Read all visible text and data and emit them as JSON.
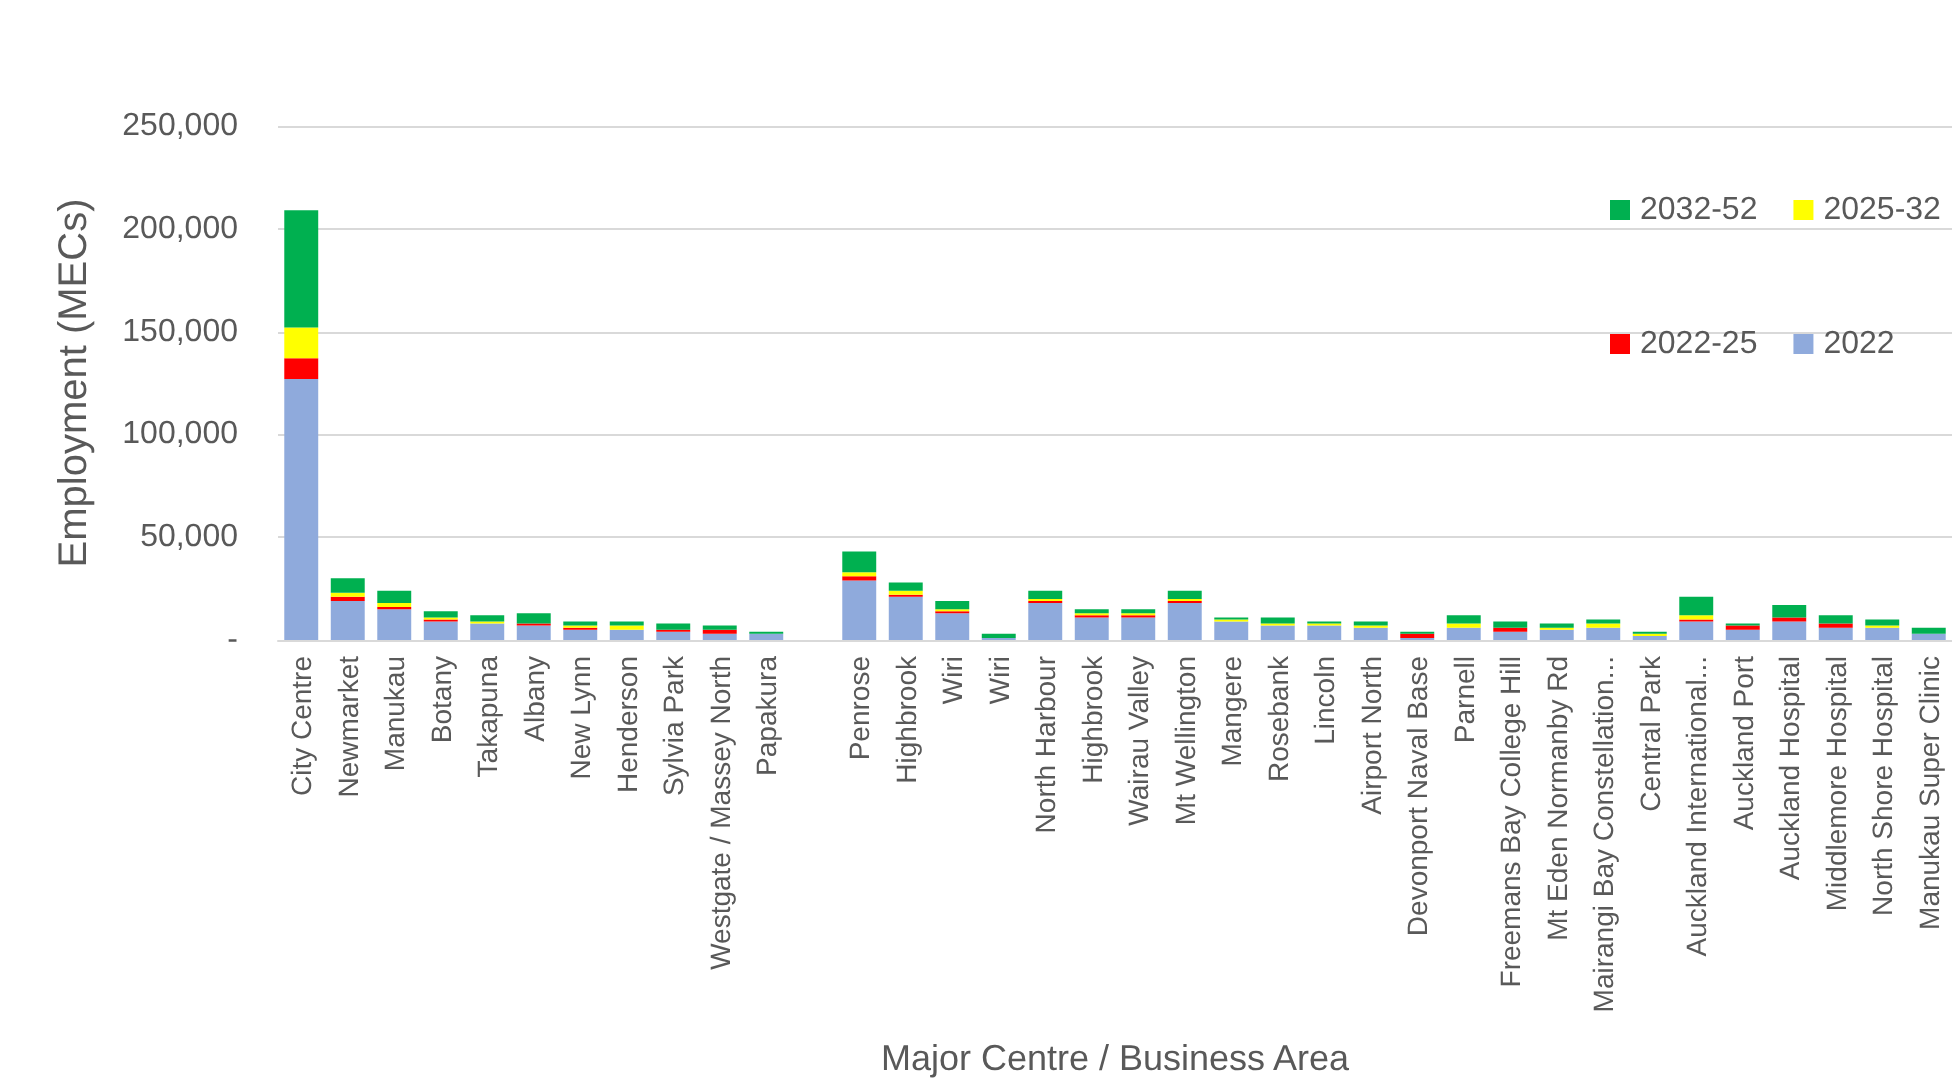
{
  "chart_data": {
    "type": "bar",
    "stacked": true,
    "xlabel": "Major Centre / Business Area",
    "ylabel": "Employment (MECs)",
    "categories": [
      "City Centre",
      "Newmarket",
      "Manukau",
      "Botany",
      "Takapuna",
      "Albany",
      "New Lynn",
      "Henderson",
      "Sylvia Park",
      "Westgate / Massey North",
      "Papakura",
      null,
      "Penrose",
      "Highbrook",
      "Wiri",
      "Wiri",
      "North Harbour",
      "Highbrook",
      "Wairau Valley",
      "Mt Wellington",
      "Mangere",
      "Rosebank",
      "Lincoln",
      "Airport North",
      "Devonport Naval Base",
      "Parnell",
      "Freemans Bay College Hill",
      "Mt Eden Normanby Rd",
      "Mairangi Bay Constellation...",
      "Central Park",
      "Auckland International...",
      "Auckland Port",
      "Auckland Hospital",
      "Middlemore Hospital",
      "North Shore Hospital",
      "Manukau Super Clinic"
    ],
    "series": [
      {
        "name": "2022",
        "color": "#8faadc",
        "values": [
          127000,
          19000,
          15000,
          9000,
          8000,
          7000,
          5000,
          5000,
          4000,
          3000,
          3000,
          null,
          29000,
          21000,
          13000,
          1000,
          18000,
          11000,
          11000,
          18000,
          9000,
          7000,
          7000,
          6000,
          1000,
          6000,
          4000,
          5000,
          6000,
          2000,
          9000,
          5000,
          9000,
          6000,
          6000,
          3000
        ]
      },
      {
        "name": "2022-25",
        "color": "#ff0000",
        "values": [
          10000,
          2000,
          1000,
          1000,
          0,
          1000,
          1000,
          0,
          1000,
          2000,
          0,
          null,
          2000,
          1000,
          1000,
          0,
          1000,
          1000,
          1000,
          1000,
          0,
          0,
          0,
          0,
          2000,
          0,
          2000,
          0,
          0,
          0,
          1000,
          2000,
          2000,
          2000,
          0,
          0
        ]
      },
      {
        "name": "2025-32",
        "color": "#ffff00",
        "values": [
          15000,
          2000,
          2000,
          1000,
          1000,
          0,
          1000,
          2000,
          0,
          0,
          0,
          null,
          2000,
          2000,
          1000,
          0,
          1000,
          1000,
          1000,
          1000,
          1000,
          1000,
          1000,
          1000,
          0,
          2000,
          0,
          1000,
          2000,
          1000,
          2000,
          0,
          0,
          0,
          1000,
          0
        ]
      },
      {
        "name": "2032-52",
        "color": "#00b050",
        "values": [
          57000,
          7000,
          6000,
          3000,
          3000,
          5000,
          2000,
          2000,
          3000,
          2000,
          1000,
          null,
          10000,
          4000,
          4000,
          2000,
          4000,
          2000,
          2000,
          4000,
          1000,
          3000,
          1000,
          2000,
          1000,
          4000,
          3000,
          2000,
          2000,
          1000,
          9000,
          1000,
          6000,
          4000,
          3000,
          3000
        ]
      }
    ],
    "ylim": [
      0,
      250000
    ],
    "yticks": [
      {
        "value": 0,
        "label": "-"
      },
      {
        "value": 50000,
        "label": "50,000"
      },
      {
        "value": 100000,
        "label": "100,000"
      },
      {
        "value": 150000,
        "label": "150,000"
      },
      {
        "value": 200000,
        "label": "200,000"
      },
      {
        "value": 250000,
        "label": "250,000"
      }
    ],
    "grid": "y",
    "legend": "top right"
  }
}
